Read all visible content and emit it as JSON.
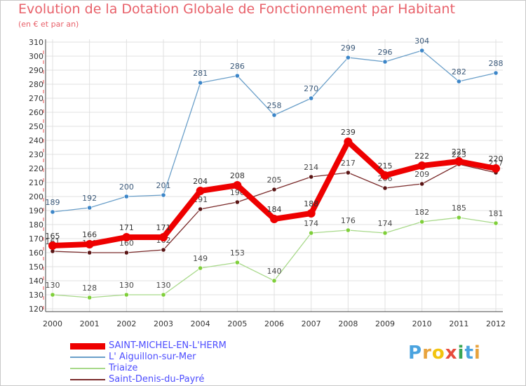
{
  "title": "Evolution de la Dotation Globale de Fonctionnement par Habitant",
  "subtitle": "(en € et par an)",
  "brand": {
    "letters": [
      "P",
      "r",
      "o",
      "x",
      "i",
      "t",
      "i"
    ],
    "colors": [
      "#4aa3df",
      "#e8a33d",
      "#f2c40f",
      "#e74c3c",
      "#3aa655",
      "#4aa3df",
      "#e8a33d"
    ]
  },
  "chart_data": {
    "type": "line",
    "title": "Evolution de la Dotation Globale de Fonctionnement par Habitant",
    "ylabel": "(en € et par an)",
    "xlabel": "",
    "ylim": [
      120,
      310
    ],
    "yticks": [
      120,
      130,
      140,
      150,
      160,
      170,
      180,
      190,
      200,
      210,
      220,
      230,
      240,
      250,
      260,
      270,
      280,
      290,
      300,
      310
    ],
    "categories": [
      "2000",
      "2001",
      "2002",
      "2003",
      "2004",
      "2005",
      "2006",
      "2007",
      "2008",
      "2009",
      "2010",
      "2011",
      "2012"
    ],
    "grid": true,
    "legend_position": "bottom-left",
    "series": [
      {
        "name": "L' Aiguillon-sur-Mer",
        "color": "#6a9fc9",
        "marker": "#3d86c8",
        "label_color": "#3c5a7a",
        "weight": "thin",
        "values": [
          189,
          192,
          200,
          201,
          281,
          286,
          258,
          270,
          299,
          296,
          304,
          282,
          288
        ]
      },
      {
        "name": "Triaize",
        "color": "#a8d98a",
        "marker": "#7fcf3a",
        "label_color": "#4a4a4a",
        "weight": "thin",
        "values": [
          130,
          128,
          130,
          130,
          149,
          153,
          140,
          174,
          176,
          174,
          182,
          185,
          181
        ]
      },
      {
        "name": "Saint-Denis-du-Payré",
        "color": "#7a2a2a",
        "marker": "#5a1414",
        "label_color": "#4a4a4a",
        "weight": "thin",
        "values": [
          161,
          160,
          160,
          162,
          191,
          196,
          205,
          214,
          217,
          206,
          209,
          223,
          217
        ]
      },
      {
        "name": "SAINT-MICHEL-EN-L'HERM",
        "color": "#ee0000",
        "marker": "#ee0000",
        "label_color": "#333333",
        "weight": "thick",
        "values": [
          165,
          166,
          171,
          171,
          204,
          208,
          184,
          188,
          239,
          215,
          222,
          225,
          220
        ]
      }
    ]
  },
  "legend": {
    "items": [
      {
        "label": "SAINT-MICHEL-EN-L'HERM",
        "color": "#ee0000",
        "weight": "thick"
      },
      {
        "label": "L' Aiguillon-sur-Mer",
        "color": "#6a9fc9",
        "weight": "thin"
      },
      {
        "label": "Triaize",
        "color": "#a8d98a",
        "weight": "thin"
      },
      {
        "label": "Saint-Denis-du-Payré",
        "color": "#7a2a2a",
        "weight": "thin"
      }
    ]
  }
}
